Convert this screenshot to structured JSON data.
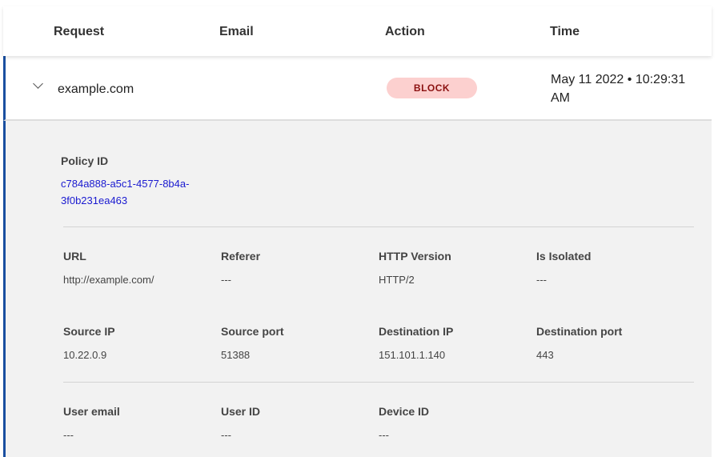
{
  "header": {
    "columns": [
      "Request",
      "Email",
      "Action",
      "Time"
    ]
  },
  "row": {
    "request": "example.com",
    "action": "BLOCK",
    "time": "May 11 2022 • 10:29:31 AM"
  },
  "details": {
    "policy_label": "Policy ID",
    "policy_id": "c784a888-a5c1-4577-8b4a-3f0b231ea463",
    "fields": [
      {
        "label": "URL",
        "value": "http://example.com/"
      },
      {
        "label": "Referer",
        "value": "---"
      },
      {
        "label": "HTTP Version",
        "value": "HTTP/2"
      },
      {
        "label": "Is Isolated",
        "value": "---"
      },
      {
        "label": "Source IP",
        "value": "10.22.0.9"
      },
      {
        "label": "Source port",
        "value": "51388"
      },
      {
        "label": "Destination IP",
        "value": "151.101.1.140"
      },
      {
        "label": "Destination port",
        "value": "443"
      },
      {
        "label": "User email",
        "value": "---"
      },
      {
        "label": "User ID",
        "value": "---"
      },
      {
        "label": "Device ID",
        "value": "---"
      }
    ]
  },
  "colors": {
    "accent": "#1a4fa0",
    "block_bg": "#fcd0cf",
    "block_text": "#8b1010",
    "link": "#1a1ad0"
  }
}
